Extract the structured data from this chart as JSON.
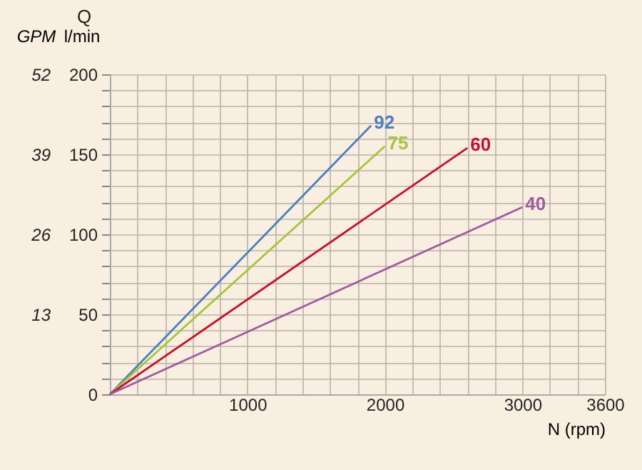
{
  "chart_data": {
    "type": "line",
    "annotations": [
      "Q"
    ],
    "xlabel": "N (rpm)",
    "ylabel": "l/min",
    "y2label": "GPM",
    "series": [
      {
        "name": "92",
        "color": "#4a7fc0",
        "x": [
          0,
          1900
        ],
        "values": [
          0,
          168
        ]
      },
      {
        "name": "75",
        "color": "#a8c43a",
        "x": [
          0,
          2000
        ],
        "values": [
          0,
          155
        ]
      },
      {
        "name": "60",
        "color": "#c8102e",
        "x": [
          0,
          2600
        ],
        "values": [
          0,
          154
        ]
      },
      {
        "name": "40",
        "color": "#a05aa0",
        "x": [
          0,
          3000
        ],
        "values": [
          0,
          117
        ]
      }
    ],
    "xlim": [
      0,
      3600
    ],
    "xticks": [
      {
        "value": 200,
        "label": null
      },
      {
        "value": 400,
        "label": null
      },
      {
        "value": 600,
        "label": null
      },
      {
        "value": 800,
        "label": null
      },
      1000,
      {
        "value": 1200,
        "label": null
      },
      {
        "value": 1400,
        "label": null
      },
      {
        "value": 1600,
        "label": null
      },
      {
        "value": 1800,
        "label": null
      },
      2000,
      {
        "value": 2200,
        "label": null
      },
      {
        "value": 2400,
        "label": null
      },
      {
        "value": 2600,
        "label": null
      },
      {
        "value": 2800,
        "label": null
      },
      3000,
      {
        "value": 3200,
        "label": null
      },
      {
        "value": 3400,
        "label": null
      },
      3600
    ],
    "ylim": [
      0,
      200
    ],
    "yticks": [
      0,
      {
        "value": 10,
        "label": null
      },
      {
        "value": 20,
        "label": null
      },
      {
        "value": 30,
        "label": null
      },
      {
        "value": 40,
        "label": null
      },
      50,
      {
        "value": 60,
        "label": null
      },
      {
        "value": 70,
        "label": null
      },
      {
        "value": 80,
        "label": null
      },
      {
        "value": 90,
        "label": null
      },
      100,
      {
        "value": 110,
        "label": null
      },
      {
        "value": 120,
        "label": null
      },
      {
        "value": 130,
        "label": null
      },
      {
        "value": 140,
        "label": null
      },
      150,
      {
        "value": 160,
        "label": null
      },
      {
        "value": 170,
        "label": null
      },
      {
        "value": 180,
        "label": null
      },
      {
        "value": 190,
        "label": null
      },
      200
    ],
    "y2lim": [
      0,
      52
    ],
    "y2ticks": [
      13,
      26,
      39,
      52
    ],
    "grid": true,
    "legend": false,
    "marker": "none",
    "line_style": "solid"
  }
}
